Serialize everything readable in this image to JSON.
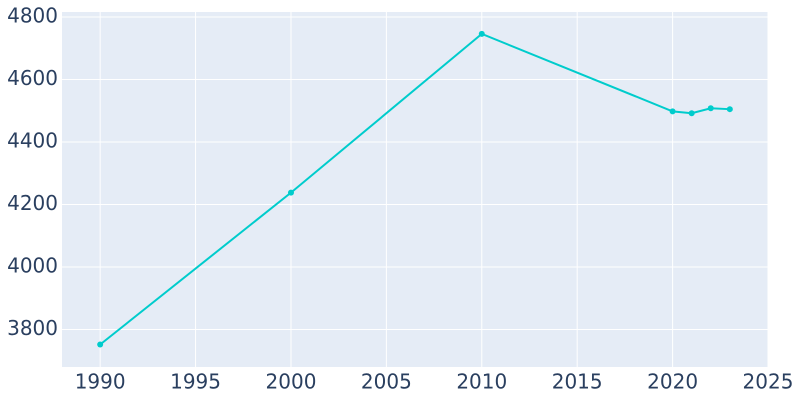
{
  "chart_data": {
    "type": "line",
    "x": [
      1990,
      2000,
      2010,
      2020,
      2021,
      2022,
      2023
    ],
    "series": [
      {
        "color": "#00cccc",
        "values": [
          3752,
          4238,
          4746,
          4498,
          4492,
          4508,
          4505
        ]
      }
    ],
    "xlim": [
      1988,
      2025
    ],
    "xticks": [
      1990,
      1995,
      2000,
      2005,
      2010,
      2015,
      2020,
      2025
    ],
    "ylim": [
      3680,
      4816
    ],
    "yticks": [
      3800,
      4000,
      4200,
      4400,
      4600,
      4800
    ],
    "grid": true
  }
}
